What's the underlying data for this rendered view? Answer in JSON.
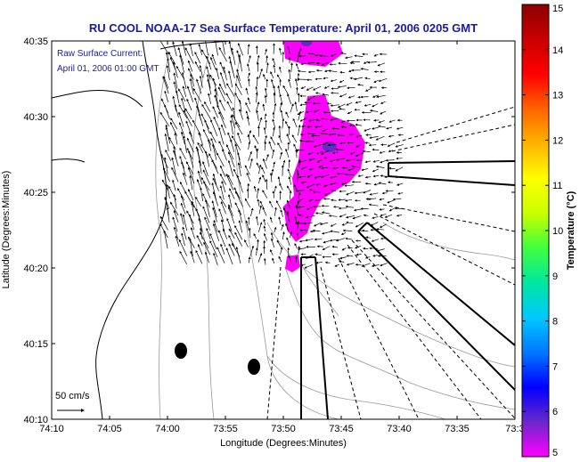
{
  "title": "RU COOL  NOAA-17  Sea Surface Temperature:  April 01, 2006 0205 GMT",
  "annotation": {
    "line1": "Raw Surface Current:",
    "line2": "April 01, 2006 01:00 GMT"
  },
  "scale_label": "50 cm/s",
  "xaxis": {
    "label": "Longitude (Degrees:Minutes)",
    "ticks": [
      "74:10",
      "74:05",
      "74:00",
      "73:55",
      "73:50",
      "73:45",
      "73:40",
      "73:35",
      "73:3"
    ]
  },
  "yaxis": {
    "label": "Latitude (Degrees:Minutes)",
    "ticks": [
      "40:35",
      "40:30",
      "40:25",
      "40:20",
      "40:15",
      "40:10"
    ]
  },
  "colorbar": {
    "label": "Temperature (°C)",
    "ticks": [
      "15",
      "14",
      "13",
      "12",
      "11",
      "10",
      "9",
      "8",
      "7",
      "6",
      "5"
    ],
    "min": 5,
    "max": 15,
    "colors": [
      "#ff00ff",
      "#6a28c8",
      "#0000ff",
      "#0078ff",
      "#00c8ff",
      "#00e6a0",
      "#40ff40",
      "#c8ff00",
      "#ffff00",
      "#ffb400",
      "#ff6400",
      "#ff0000",
      "#c80000",
      "#8c0000"
    ]
  },
  "colors": {
    "title": "#1a1aa6",
    "sst_patch": "#ff00ff"
  }
}
